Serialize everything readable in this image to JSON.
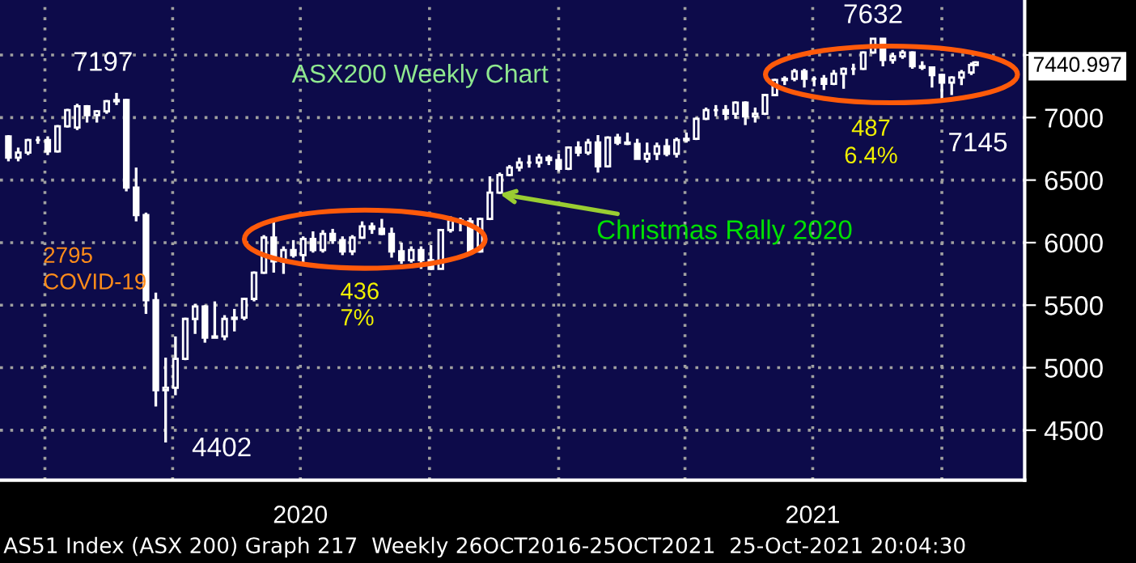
{
  "chart_data": {
    "type": "candlestick",
    "title": "ASX200 Weekly Chart",
    "color": "#ffffff",
    "grid": true,
    "x": [
      "2019-12-06",
      "2019-12-13",
      "2019-12-20",
      "2019-12-27",
      "2020-01-03",
      "2020-01-10",
      "2020-01-17",
      "2020-01-24",
      "2020-01-31",
      "2020-02-07",
      "2020-02-14",
      "2020-02-21",
      "2020-02-28",
      "2020-03-06",
      "2020-03-13",
      "2020-03-20",
      "2020-03-27",
      "2020-04-03",
      "2020-04-10",
      "2020-04-17",
      "2020-04-24",
      "2020-05-01",
      "2020-05-08",
      "2020-05-15",
      "2020-05-22",
      "2020-05-29",
      "2020-06-05",
      "2020-06-12",
      "2020-06-19",
      "2020-06-26",
      "2020-07-03",
      "2020-07-10",
      "2020-07-17",
      "2020-07-24",
      "2020-07-31",
      "2020-08-07",
      "2020-08-14",
      "2020-08-21",
      "2020-08-28",
      "2020-09-04",
      "2020-09-11",
      "2020-09-18",
      "2020-09-25",
      "2020-10-02",
      "2020-10-09",
      "2020-10-16",
      "2020-10-23",
      "2020-10-30",
      "2020-11-06",
      "2020-11-13",
      "2020-11-20",
      "2020-11-27",
      "2020-12-04",
      "2020-12-11",
      "2020-12-18",
      "2020-12-25",
      "2021-01-01",
      "2021-01-08",
      "2021-01-15",
      "2021-01-22",
      "2021-01-29",
      "2021-02-05",
      "2021-02-12",
      "2021-02-19",
      "2021-02-26",
      "2021-03-05",
      "2021-03-12",
      "2021-03-19",
      "2021-03-26",
      "2021-04-02",
      "2021-04-09",
      "2021-04-16",
      "2021-04-23",
      "2021-04-30",
      "2021-05-07",
      "2021-05-14",
      "2021-05-21",
      "2021-05-28",
      "2021-06-04",
      "2021-06-11",
      "2021-06-18",
      "2021-06-25",
      "2021-07-02",
      "2021-07-09",
      "2021-07-16",
      "2021-07-23",
      "2021-07-30",
      "2021-08-06",
      "2021-08-13",
      "2021-08-20",
      "2021-08-27",
      "2021-09-03",
      "2021-09-10",
      "2021-09-17",
      "2021-09-24",
      "2021-10-01",
      "2021-10-08",
      "2021-10-15",
      "2021-10-22",
      "2021-10-25"
    ],
    "ohlc": [
      [
        6850,
        6860,
        6650,
        6680
      ],
      [
        6680,
        6760,
        6650,
        6720
      ],
      [
        6720,
        6830,
        6700,
        6820
      ],
      [
        6820,
        6850,
        6790,
        6820
      ],
      [
        6820,
        6850,
        6700,
        6730
      ],
      [
        6730,
        6940,
        6720,
        6930
      ],
      [
        6930,
        7070,
        6920,
        7060
      ],
      [
        6920,
        7110,
        6900,
        7090
      ],
      [
        7090,
        7100,
        6960,
        7020
      ],
      [
        7020,
        7060,
        6960,
        7050
      ],
      [
        7050,
        7140,
        7030,
        7130
      ],
      [
        7130,
        7197,
        7100,
        7140
      ],
      [
        7140,
        7150,
        6410,
        6440
      ],
      [
        6440,
        6600,
        6170,
        6220
      ],
      [
        6220,
        6240,
        5430,
        5540
      ],
      [
        5540,
        5600,
        4690,
        4820
      ],
      [
        4820,
        5080,
        4402,
        4840
      ],
      [
        4840,
        5250,
        4780,
        5070
      ],
      [
        5070,
        5400,
        5060,
        5390
      ],
      [
        5390,
        5510,
        5270,
        5490
      ],
      [
        5490,
        5500,
        5200,
        5240
      ],
      [
        5240,
        5530,
        5240,
        5250
      ],
      [
        5250,
        5420,
        5220,
        5390
      ],
      [
        5390,
        5470,
        5290,
        5400
      ],
      [
        5400,
        5560,
        5380,
        5550
      ],
      [
        5550,
        5770,
        5530,
        5760
      ],
      [
        5760,
        6060,
        5750,
        6040
      ],
      [
        6040,
        6170,
        5760,
        5850
      ],
      [
        5850,
        5970,
        5750,
        5940
      ],
      [
        5940,
        6020,
        5880,
        5900
      ],
      [
        5900,
        6050,
        5840,
        6030
      ],
      [
        6030,
        6090,
        5920,
        5940
      ],
      [
        5940,
        6100,
        5920,
        6070
      ],
      [
        6070,
        6110,
        5990,
        6020
      ],
      [
        6020,
        6050,
        5900,
        5930
      ],
      [
        5930,
        6060,
        5900,
        6040
      ],
      [
        6040,
        6170,
        6030,
        6130
      ],
      [
        6130,
        6160,
        6070,
        6110
      ],
      [
        6110,
        6190,
        6060,
        6070
      ],
      [
        6070,
        6120,
        5880,
        5930
      ],
      [
        5930,
        6000,
        5830,
        5860
      ],
      [
        5860,
        5970,
        5840,
        5940
      ],
      [
        5940,
        5970,
        5790,
        5860
      ],
      [
        5860,
        5980,
        5780,
        5790
      ],
      [
        5790,
        6110,
        5790,
        6100
      ],
      [
        6100,
        6210,
        6080,
        6180
      ],
      [
        6180,
        6200,
        6090,
        6170
      ],
      [
        6170,
        6200,
        5910,
        5930
      ],
      [
        5930,
        6200,
        5920,
        6190
      ],
      [
        6190,
        6530,
        6180,
        6400
      ],
      [
        6400,
        6560,
        6390,
        6540
      ],
      [
        6540,
        6620,
        6530,
        6600
      ],
      [
        6600,
        6680,
        6570,
        6640
      ],
      [
        6640,
        6700,
        6600,
        6640
      ],
      [
        6640,
        6710,
        6600,
        6680
      ],
      [
        6680,
        6700,
        6620,
        6660
      ],
      [
        6660,
        6710,
        6570,
        6590
      ],
      [
        6590,
        6770,
        6580,
        6760
      ],
      [
        6760,
        6810,
        6690,
        6720
      ],
      [
        6720,
        6830,
        6700,
        6800
      ],
      [
        6800,
        6860,
        6560,
        6610
      ],
      [
        6610,
        6850,
        6600,
        6840
      ],
      [
        6840,
        6870,
        6780,
        6800
      ],
      [
        6800,
        6880,
        6780,
        6790
      ],
      [
        6790,
        6830,
        6670,
        6670
      ],
      [
        6670,
        6800,
        6640,
        6710
      ],
      [
        6710,
        6800,
        6660,
        6770
      ],
      [
        6770,
        6830,
        6690,
        6710
      ],
      [
        6710,
        6840,
        6680,
        6820
      ],
      [
        6820,
        6880,
        6800,
        6830
      ],
      [
        6830,
        7000,
        6820,
        6990
      ],
      [
        6990,
        7080,
        6980,
        7060
      ],
      [
        7060,
        7100,
        7010,
        7060
      ],
      [
        7060,
        7100,
        6980,
        7030
      ],
      [
        7030,
        7130,
        6990,
        7120
      ],
      [
        7120,
        7130,
        6940,
        7010
      ],
      [
        7010,
        7080,
        6960,
        7030
      ],
      [
        7030,
        7190,
        7020,
        7180
      ],
      [
        7180,
        7310,
        7170,
        7300
      ],
      [
        7300,
        7330,
        7260,
        7310
      ],
      [
        7310,
        7390,
        7290,
        7370
      ],
      [
        7370,
        7390,
        7240,
        7310
      ],
      [
        7310,
        7330,
        7250,
        7310
      ],
      [
        7310,
        7340,
        7220,
        7270
      ],
      [
        7270,
        7380,
        7260,
        7350
      ],
      [
        7350,
        7400,
        7230,
        7390
      ],
      [
        7390,
        7430,
        7340,
        7390
      ],
      [
        7390,
        7530,
        7380,
        7520
      ],
      [
        7520,
        7632,
        7510,
        7630
      ],
      [
        7630,
        7630,
        7410,
        7460
      ],
      [
        7460,
        7520,
        7430,
        7490
      ],
      [
        7490,
        7540,
        7470,
        7520
      ],
      [
        7520,
        7530,
        7390,
        7410
      ],
      [
        7410,
        7450,
        7380,
        7400
      ],
      [
        7400,
        7410,
        7240,
        7340
      ],
      [
        7340,
        7350,
        7145,
        7280
      ],
      [
        7280,
        7330,
        7180,
        7320
      ],
      [
        7320,
        7380,
        7260,
        7360
      ],
      [
        7360,
        7440,
        7340,
        7420
      ],
      [
        7420,
        7450,
        7420,
        7441
      ]
    ],
    "xlim": [
      "2019-11-30",
      "2021-11-29"
    ],
    "xticks": [
      {
        "value": "2020-01-01",
        "label": null
      },
      {
        "value": "2020-04-01",
        "label": null
      },
      {
        "value": "2020-07-01",
        "label": "2020"
      },
      {
        "value": "2020-10-01",
        "label": null
      },
      {
        "value": "2021-01-01",
        "label": null
      },
      {
        "value": "2021-04-01",
        "label": null
      },
      {
        "value": "2021-07-01",
        "label": "2021"
      },
      {
        "value": "2021-10-01",
        "label": null
      }
    ],
    "ylim": [
      4100,
      7940
    ],
    "yticks": [
      4500,
      5000,
      5500,
      6000,
      6500,
      7000,
      {
        "value": 7500,
        "label": null
      }
    ],
    "annotations": [
      {
        "text": "7197",
        "x": "2020-02-21",
        "y": 7197
      },
      {
        "text": "4402",
        "x": "2020-03-27",
        "y": 4402
      },
      "2795",
      "COVID-19",
      "436",
      "7%",
      {
        "text": "Christmas Rally 2020",
        "x": "2020-11-20",
        "y": 6390
      },
      {
        "text": "7632",
        "x": "2021-08-13",
        "y": 7632
      },
      "487",
      "6.4%",
      {
        "text": "7145",
        "x": "2021-10-01",
        "y": 7145
      },
      "7440.997",
      "AS51 Index (ASX 200) Graph 217  Weekly 26OCT2016-25OCT2021  25-Oct-2021 20:04:30"
    ]
  }
}
